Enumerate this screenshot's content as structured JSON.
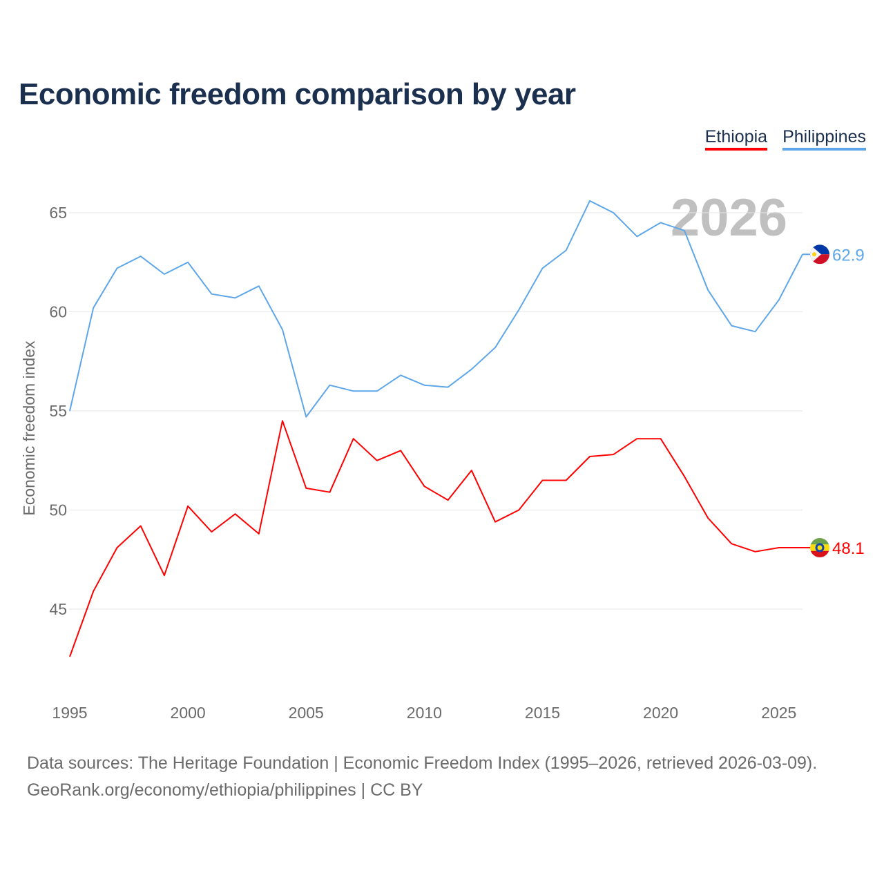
{
  "title": "Economic freedom comparison by year",
  "footer": {
    "line1": "Data sources: The Heritage Foundation | Economic Freedom Index (1995–2026, retrieved 2026-03-09).",
    "line2": "GeoRank.org/economy/ethiopia/philippines | CC BY"
  },
  "chart_data": {
    "type": "line",
    "title": "Economic freedom comparison by year",
    "xlabel": "",
    "ylabel": "Economic freedom index",
    "year_watermark": "2026",
    "xlim": [
      1995,
      2026
    ],
    "ylim": [
      41,
      67
    ],
    "xticks": [
      1995,
      2000,
      2005,
      2010,
      2015,
      2020,
      2025
    ],
    "yticks": [
      45,
      50,
      55,
      60,
      65
    ],
    "grid": true,
    "legend_position": "top-right",
    "x": [
      1995,
      1996,
      1997,
      1998,
      1999,
      2000,
      2001,
      2002,
      2003,
      2004,
      2005,
      2006,
      2007,
      2008,
      2009,
      2010,
      2011,
      2012,
      2013,
      2014,
      2015,
      2016,
      2017,
      2018,
      2019,
      2020,
      2021,
      2022,
      2023,
      2024,
      2025,
      2026
    ],
    "series": [
      {
        "name": "Ethiopia",
        "color": "#ff0000",
        "flag": "ethiopia-flag",
        "end_label": "48.1",
        "values": [
          42.6,
          45.9,
          48.1,
          49.2,
          46.7,
          50.2,
          48.9,
          49.8,
          48.8,
          54.5,
          51.1,
          50.9,
          53.6,
          52.5,
          53.0,
          51.2,
          50.5,
          52.0,
          49.4,
          50.0,
          51.5,
          51.5,
          52.7,
          52.8,
          53.6,
          53.6,
          51.7,
          49.6,
          48.3,
          47.9,
          48.1,
          48.1
        ]
      },
      {
        "name": "Philippines",
        "color": "#5ea6ea",
        "flag": "philippines-flag",
        "end_label": "62.9",
        "values": [
          55.0,
          60.2,
          62.2,
          62.8,
          61.9,
          62.5,
          60.9,
          60.7,
          61.3,
          59.1,
          54.7,
          56.3,
          56.0,
          56.0,
          56.8,
          56.3,
          56.2,
          57.1,
          58.2,
          60.1,
          62.2,
          63.1,
          65.6,
          65.0,
          63.8,
          64.5,
          64.1,
          61.1,
          59.3,
          59.0,
          60.6,
          62.9
        ]
      }
    ]
  }
}
